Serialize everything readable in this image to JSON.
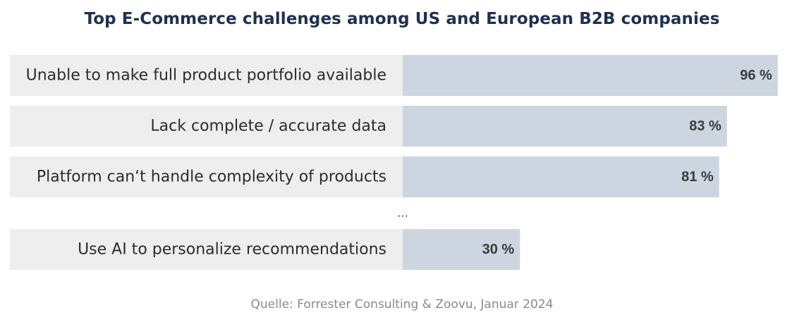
{
  "chart_data": {
    "type": "bar",
    "orientation": "horizontal",
    "title": "Top E-Commerce challenges among US and European B2B companies",
    "categories": [
      "Unable to make full product portfolio available",
      "Lack complete / accurate data",
      "Platform can‘t handle complexity of products",
      "Use AI to personalize recommendations"
    ],
    "values": [
      96,
      83,
      81,
      30
    ],
    "value_labels": [
      "96 %",
      "83 %",
      "81 %",
      "30 %"
    ],
    "unit": "%",
    "gap_marker": "…",
    "gap_after_index": 2,
    "xlim": [
      0,
      100
    ],
    "grid": false,
    "legend": "none",
    "colors": {
      "bar": "#cdd6e0",
      "label_band": "#eeeeee",
      "title": "#1f3050"
    }
  },
  "source": "Quelle: Forrester Consulting & Zoovu, Januar 2024"
}
